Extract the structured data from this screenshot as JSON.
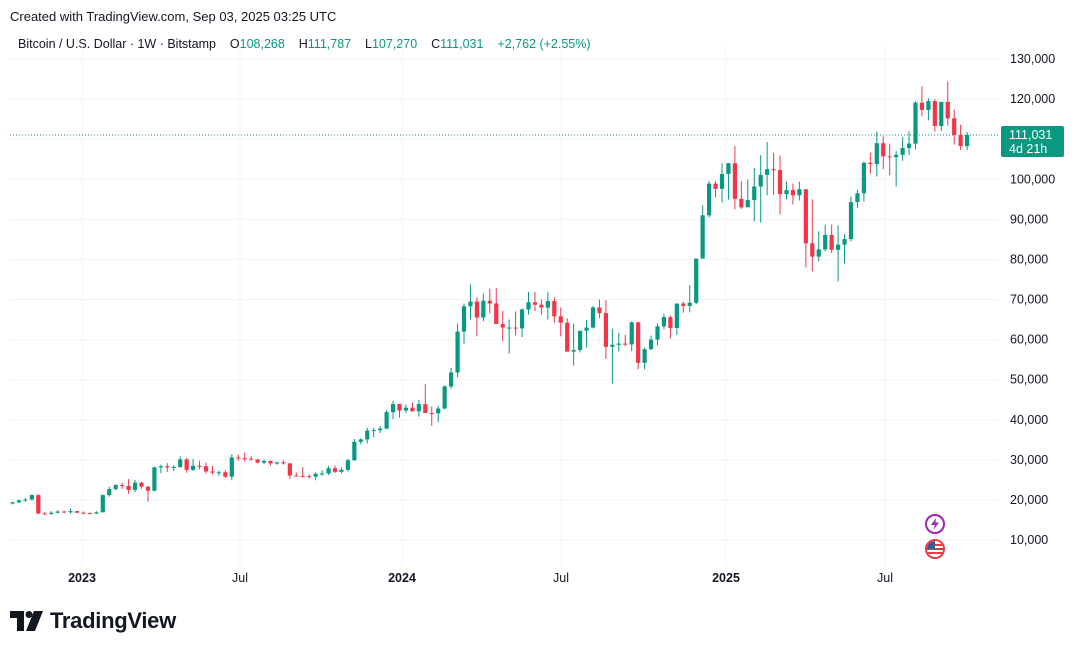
{
  "header": {
    "credit": "Created with TradingView.com, Sep 03, 2025 03:25 UTC"
  },
  "legend": {
    "symbol": "Bitcoin / U.S. Dollar · 1W · Bitstamp",
    "o_label": "O",
    "o_value": "108,268",
    "h_label": "H",
    "h_value": "111,787",
    "l_label": "L",
    "l_value": "107,270",
    "c_label": "C",
    "c_value": "111,031",
    "change": "+2,762 (+2.55%)"
  },
  "price_badge": {
    "price": "111,031",
    "countdown": "4d 21h"
  },
  "footer": {
    "brand": "TradingView"
  },
  "colors": {
    "up": "#089981",
    "down": "#F23645",
    "grid": "#F0F3FA",
    "price_line": "#089981"
  },
  "event_icons": [
    "lightning-event-icon",
    "us-flag-event-icon"
  ],
  "chart_data": {
    "type": "candlestick",
    "title": "Bitcoin / U.S. Dollar · 1W · Bitstamp",
    "ylim": [
      0,
      135000
    ],
    "y_ticks": [
      "130,000",
      "120,000",
      "110,000",
      "100,000",
      "90,000",
      "80,000",
      "70,000",
      "60,000",
      "50,000",
      "40,000",
      "30,000",
      "20,000",
      "10,000"
    ],
    "x_ticks": [
      {
        "label": "2023",
        "bold": true,
        "week": 0
      },
      {
        "label": "Jul",
        "bold": false,
        "week": 0
      },
      {
        "label": "2024",
        "bold": true,
        "week": 0
      },
      {
        "label": "Jul",
        "bold": false,
        "week": 0
      },
      {
        "label": "2025",
        "bold": true,
        "week": 0
      },
      {
        "label": "Jul",
        "bold": false,
        "week": 0
      }
    ],
    "grid": true,
    "last_price": 111031,
    "candles": [
      [
        19100,
        19500,
        18900,
        19400
      ],
      [
        19400,
        20100,
        19200,
        19900
      ],
      [
        19900,
        20500,
        19500,
        20100
      ],
      [
        20100,
        21400,
        19800,
        21200
      ],
      [
        21200,
        21400,
        16500,
        16600
      ],
      [
        16600,
        17000,
        16300,
        16500
      ],
      [
        16500,
        17200,
        16300,
        16800
      ],
      [
        16800,
        17400,
        16600,
        17100
      ],
      [
        17100,
        17300,
        16700,
        16900
      ],
      [
        16900,
        17900,
        16600,
        17200
      ],
      [
        17200,
        17300,
        16800,
        16800
      ],
      [
        16800,
        17100,
        16500,
        16700
      ],
      [
        16700,
        16900,
        16500,
        16600
      ],
      [
        16600,
        17200,
        16500,
        16900
      ],
      [
        16900,
        21400,
        16900,
        21200
      ],
      [
        21200,
        23300,
        20800,
        22700
      ],
      [
        22700,
        23900,
        22400,
        23700
      ],
      [
        23700,
        24300,
        22700,
        23500
      ],
      [
        23500,
        25200,
        21500,
        22500
      ],
      [
        22500,
        25000,
        21900,
        24300
      ],
      [
        24300,
        24500,
        22800,
        23300
      ],
      [
        23300,
        23500,
        19600,
        22300
      ],
      [
        22300,
        28300,
        22100,
        28100
      ],
      [
        28100,
        28800,
        26700,
        28400
      ],
      [
        28400,
        29200,
        27000,
        28100
      ],
      [
        28100,
        28600,
        27200,
        28200
      ],
      [
        28200,
        30900,
        28100,
        30100
      ],
      [
        30100,
        30500,
        26800,
        27500
      ],
      [
        27500,
        30200,
        27200,
        28500
      ],
      [
        28500,
        29800,
        27600,
        28400
      ],
      [
        28400,
        29300,
        26600,
        27100
      ],
      [
        27100,
        28500,
        26300,
        26800
      ],
      [
        26800,
        27300,
        26000,
        26900
      ],
      [
        26900,
        27400,
        25500,
        25800
      ],
      [
        25800,
        31400,
        24900,
        30600
      ],
      [
        30600,
        31300,
        29800,
        30400
      ],
      [
        30400,
        31800,
        29600,
        30300
      ],
      [
        30300,
        31000,
        29800,
        30100
      ],
      [
        30100,
        30200,
        29100,
        29300
      ],
      [
        29300,
        30100,
        28900,
        29700
      ],
      [
        29700,
        29800,
        28600,
        29100
      ],
      [
        29100,
        29500,
        28800,
        29400
      ],
      [
        29400,
        29900,
        28800,
        29100
      ],
      [
        29100,
        29200,
        25200,
        26100
      ],
      [
        26100,
        26800,
        25800,
        26000
      ],
      [
        26000,
        28200,
        25600,
        25900
      ],
      [
        25900,
        26400,
        25400,
        25800
      ],
      [
        25800,
        26900,
        24900,
        26500
      ],
      [
        26500,
        27400,
        26000,
        26600
      ],
      [
        26600,
        28500,
        26200,
        27900
      ],
      [
        27900,
        28600,
        26700,
        27000
      ],
      [
        27000,
        28100,
        26600,
        27500
      ],
      [
        27500,
        30200,
        27100,
        29900
      ],
      [
        29900,
        35200,
        29800,
        34500
      ],
      [
        34500,
        35400,
        33900,
        35100
      ],
      [
        35100,
        38000,
        34100,
        37300
      ],
      [
        37300,
        38000,
        35600,
        37400
      ],
      [
        37400,
        38400,
        36700,
        37800
      ],
      [
        37800,
        42400,
        37600,
        41900
      ],
      [
        41900,
        44700,
        40200,
        43900
      ],
      [
        43900,
        44000,
        40500,
        42300
      ],
      [
        42300,
        43800,
        41700,
        43000
      ],
      [
        43000,
        44300,
        42000,
        42100
      ],
      [
        42100,
        45000,
        40800,
        43900
      ],
      [
        43900,
        48900,
        42400,
        41700
      ],
      [
        41700,
        43300,
        38500,
        41600
      ],
      [
        41600,
        43500,
        39400,
        42800
      ],
      [
        42800,
        48600,
        42600,
        48300
      ],
      [
        48300,
        52900,
        47700,
        51800
      ],
      [
        51800,
        64000,
        50600,
        62000
      ],
      [
        62000,
        69000,
        59000,
        68300
      ],
      [
        68300,
        73800,
        65000,
        69500
      ],
      [
        69500,
        70500,
        60800,
        65500
      ],
      [
        65500,
        71500,
        64600,
        69700
      ],
      [
        69700,
        72700,
        66500,
        69000
      ],
      [
        69000,
        72800,
        64000,
        63900
      ],
      [
        63900,
        67200,
        59600,
        63000
      ],
      [
        63000,
        65000,
        56500,
        63000
      ],
      [
        63000,
        67000,
        61000,
        62800
      ],
      [
        62800,
        67800,
        60600,
        67500
      ],
      [
        67500,
        71900,
        66200,
        69300
      ],
      [
        69300,
        71900,
        67100,
        68700
      ],
      [
        68700,
        70000,
        66200,
        68000
      ],
      [
        68000,
        71900,
        65000,
        69600
      ],
      [
        69600,
        70500,
        64200,
        65800
      ],
      [
        65800,
        68000,
        60800,
        64200
      ],
      [
        64200,
        65300,
        58000,
        57000
      ],
      [
        57000,
        64000,
        53500,
        57400
      ],
      [
        57400,
        62000,
        56800,
        62200
      ],
      [
        62200,
        64900,
        58000,
        63000
      ],
      [
        63000,
        68400,
        62800,
        68000
      ],
      [
        68000,
        70000,
        65300,
        66600
      ],
      [
        66600,
        69800,
        55200,
        58200
      ],
      [
        58200,
        62700,
        49000,
        58700
      ],
      [
        58700,
        61700,
        57000,
        59000
      ],
      [
        59000,
        61200,
        58300,
        58800
      ],
      [
        58800,
        64500,
        57100,
        64300
      ],
      [
        64300,
        64400,
        52600,
        54200
      ],
      [
        54200,
        58000,
        52600,
        57600
      ],
      [
        57600,
        61000,
        57400,
        60000
      ],
      [
        60000,
        64100,
        58600,
        63300
      ],
      [
        63300,
        66500,
        62600,
        65600
      ],
      [
        65600,
        66000,
        60300,
        62900
      ],
      [
        62900,
        69000,
        61200,
        69000
      ],
      [
        69000,
        69500,
        66700,
        68400
      ],
      [
        68400,
        73600,
        66800,
        69200
      ],
      [
        69200,
        80200,
        68800,
        80200
      ],
      [
        80200,
        93500,
        80200,
        91000
      ],
      [
        91000,
        99600,
        90400,
        98900
      ],
      [
        98900,
        99500,
        95500,
        97600
      ],
      [
        97600,
        104000,
        94200,
        101300
      ],
      [
        101300,
        104000,
        94900,
        104000
      ],
      [
        104000,
        108300,
        92500,
        95100
      ],
      [
        95100,
        99600,
        92600,
        93000
      ],
      [
        93000,
        99900,
        93500,
        94800
      ],
      [
        94800,
        102800,
        89500,
        98200
      ],
      [
        98200,
        106000,
        89200,
        101100
      ],
      [
        101100,
        109300,
        96000,
        102500
      ],
      [
        102500,
        106600,
        96100,
        102300
      ],
      [
        102300,
        105900,
        91200,
        96300
      ],
      [
        96300,
        99500,
        95000,
        97300
      ],
      [
        97300,
        98900,
        93700,
        96000
      ],
      [
        96000,
        99400,
        94700,
        97500
      ],
      [
        97500,
        97500,
        78000,
        84000
      ],
      [
        84000,
        95000,
        77000,
        80700
      ],
      [
        80700,
        87000,
        79500,
        82500
      ],
      [
        82500,
        88700,
        82000,
        86100
      ],
      [
        86100,
        88700,
        81600,
        82400
      ],
      [
        82400,
        88500,
        74500,
        83700
      ],
      [
        83700,
        86300,
        79000,
        85100
      ],
      [
        85100,
        95700,
        84500,
        94300
      ],
      [
        94300,
        97400,
        92800,
        96500
      ],
      [
        96500,
        104400,
        94400,
        104100
      ],
      [
        104100,
        106600,
        101400,
        103800
      ],
      [
        103800,
        111900,
        100700,
        109000
      ],
      [
        109000,
        110700,
        102500,
        105700
      ],
      [
        105700,
        108900,
        101000,
        105500
      ],
      [
        105500,
        107000,
        98200,
        106100
      ],
      [
        106100,
        110500,
        104600,
        107800
      ],
      [
        107800,
        112000,
        106000,
        108900
      ],
      [
        108900,
        119500,
        107500,
        119100
      ],
      [
        119100,
        123200,
        115700,
        117300
      ],
      [
        117300,
        120200,
        114700,
        119500
      ],
      [
        119500,
        120000,
        111900,
        113300
      ],
      [
        113300,
        119300,
        112000,
        119300
      ],
      [
        119300,
        124400,
        113400,
        115200
      ],
      [
        115200,
        117400,
        108700,
        111000
      ],
      [
        111000,
        113600,
        107300,
        108300
      ],
      [
        108268,
        111787,
        107270,
        111031
      ]
    ]
  }
}
